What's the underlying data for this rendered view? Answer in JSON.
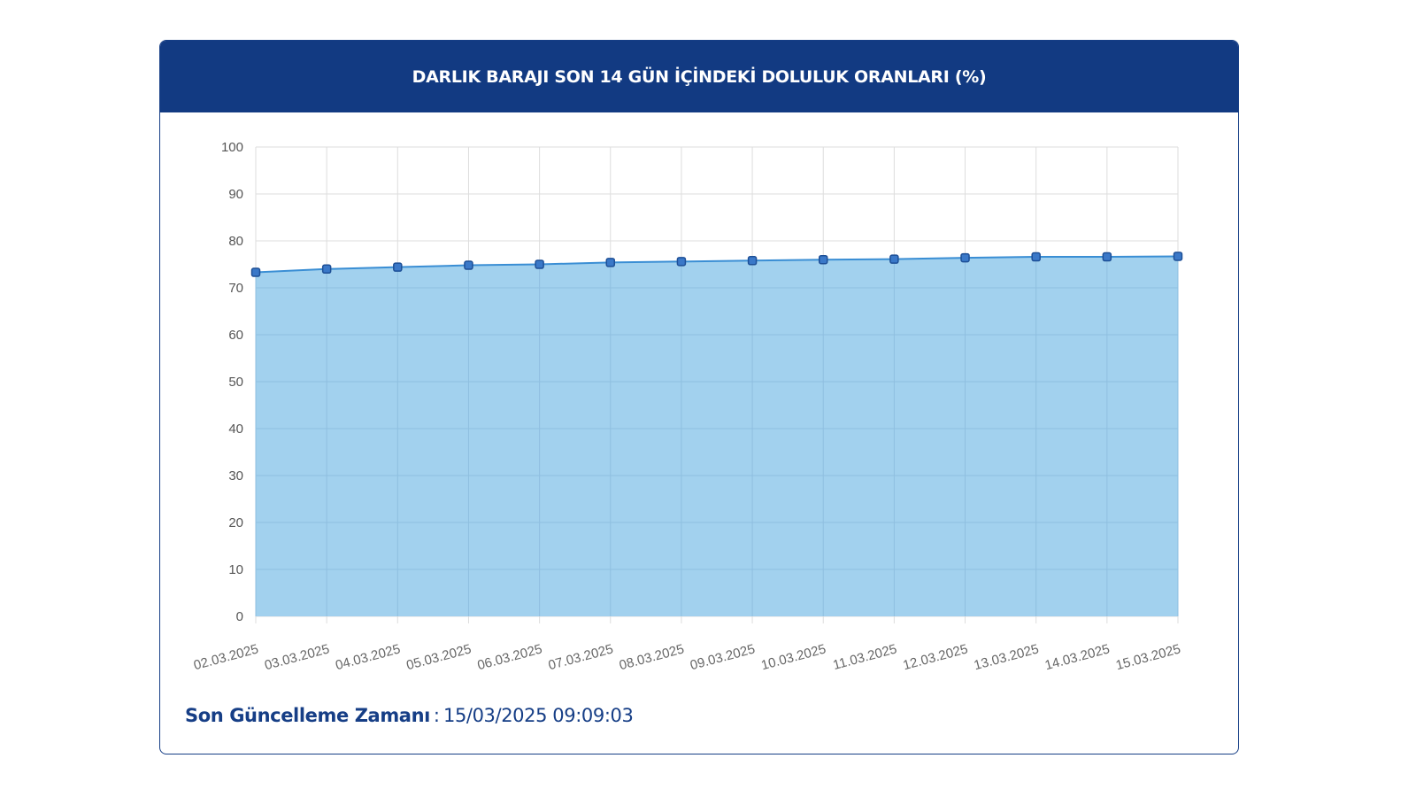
{
  "header": {
    "title": "DARLIK BARAJI SON 14 GÜN İÇİNDEKİ DOLULUK ORANLARI (%)"
  },
  "footer": {
    "label": "Son Güncelleme Zamanı",
    "separator": ":",
    "value": "15/03/2025 09:09:03"
  },
  "colors": {
    "header_bg": "#123a82",
    "area_fill": "#9dcfed",
    "line": "#3a8ed4",
    "marker_fill": "#3a78c8",
    "marker_stroke": "#1d4f96",
    "grid": "#dddddd"
  },
  "chart_data": {
    "type": "area",
    "title": "DARLIK BARAJI SON 14 GÜN İÇİNDEKİ DOLULUK ORANLARI (%)",
    "xlabel": "",
    "ylabel": "",
    "ylim": [
      0,
      100
    ],
    "yticks": [
      0,
      10,
      20,
      30,
      40,
      50,
      60,
      70,
      80,
      90,
      100
    ],
    "grid": true,
    "legend": "none",
    "categories": [
      "02.03.2025",
      "03.03.2025",
      "04.03.2025",
      "05.03.2025",
      "06.03.2025",
      "07.03.2025",
      "08.03.2025",
      "09.03.2025",
      "10.03.2025",
      "11.03.2025",
      "12.03.2025",
      "13.03.2025",
      "14.03.2025",
      "15.03.2025"
    ],
    "series": [
      {
        "values": [
          73.3,
          74.0,
          74.4,
          74.8,
          75.0,
          75.4,
          75.6,
          75.8,
          76.0,
          76.1,
          76.4,
          76.6,
          76.6,
          76.7
        ]
      }
    ]
  }
}
